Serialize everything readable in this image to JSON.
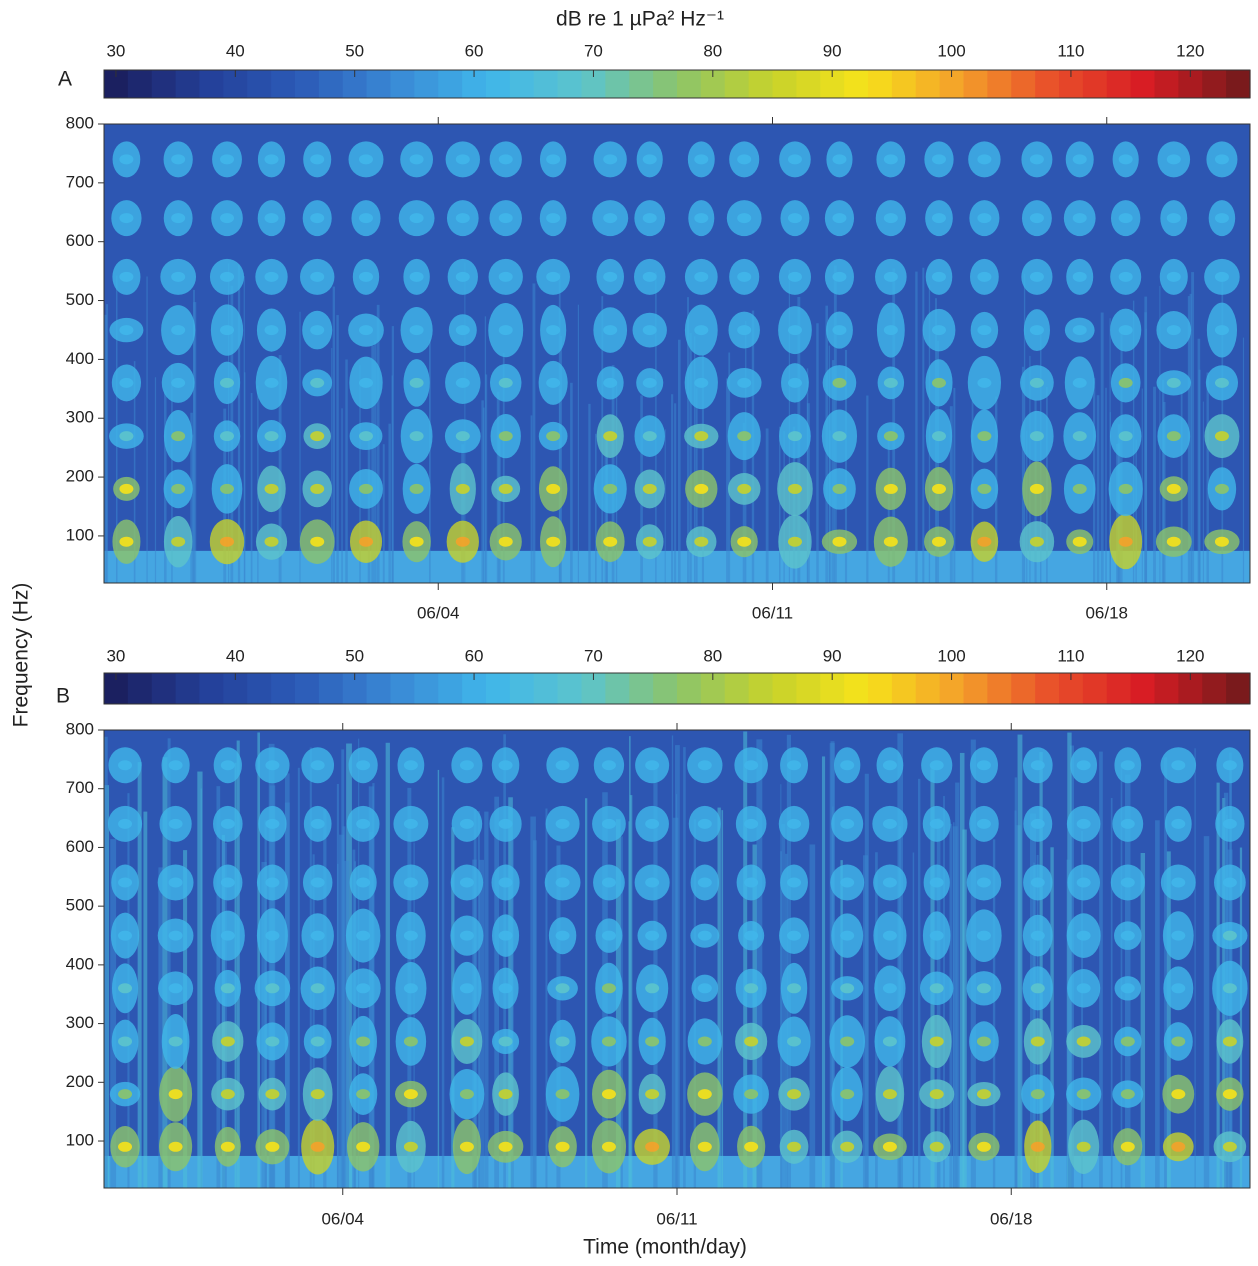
{
  "chart_data": [
    {
      "type": "spectrogram",
      "panel_label": "A",
      "colorbar_label": "dB re 1 µPa² Hz⁻¹",
      "clim": [
        29,
        125
      ],
      "cticks": [
        30,
        40,
        50,
        60,
        70,
        80,
        90,
        100,
        110,
        120
      ],
      "ylim": [
        20,
        800
      ],
      "yticks": [
        100,
        200,
        300,
        400,
        500,
        600,
        700,
        800
      ],
      "xlim": [
        "05/28",
        "06/21"
      ],
      "xticks": [
        "06/04",
        "06/11",
        "06/18"
      ],
      "y_label": "Frequency (Hz)",
      "colormap": [
        "#1b2060",
        "#24409a",
        "#2c5cb8",
        "#3a8ad6",
        "#40b6ea",
        "#5cc4cc",
        "#8cc46a",
        "#c6d22c",
        "#f6e21a",
        "#f4a22a",
        "#e8502a",
        "#d81c24",
        "#7a1a1c"
      ]
    },
    {
      "type": "spectrogram",
      "panel_label": "B",
      "clim": [
        29,
        125
      ],
      "cticks": [
        30,
        40,
        50,
        60,
        70,
        80,
        90,
        100,
        110,
        120
      ],
      "ylim": [
        20,
        800
      ],
      "yticks": [
        100,
        200,
        300,
        400,
        500,
        600,
        700,
        800
      ],
      "xlim": [
        "05/30",
        "06/23"
      ],
      "xticks": [
        "06/04",
        "06/11",
        "06/18"
      ],
      "x_label": "Time (month/day)",
      "colormap": [
        "#1b2060",
        "#24409a",
        "#2c5cb8",
        "#3a8ad6",
        "#40b6ea",
        "#5cc4cc",
        "#8cc46a",
        "#c6d22c",
        "#f6e21a",
        "#f4a22a",
        "#e8502a",
        "#d81c24",
        "#7a1a1c"
      ]
    }
  ]
}
